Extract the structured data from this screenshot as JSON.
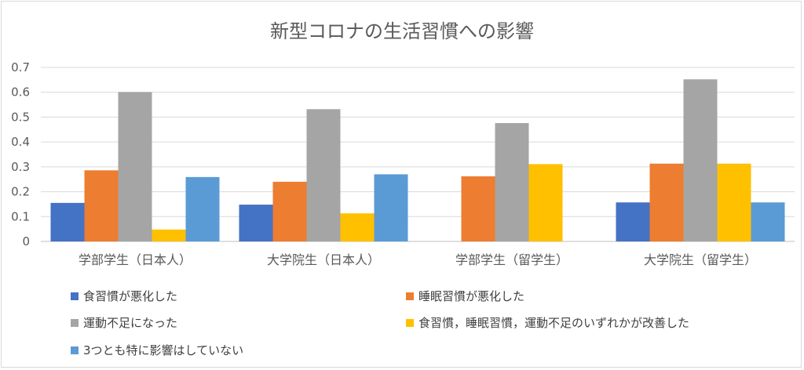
{
  "chart_data": {
    "type": "bar",
    "title": "新型コロナの生活習慣への影響",
    "xlabel": "",
    "ylabel": "",
    "ylim": [
      0,
      0.7
    ],
    "yticks": [
      "0",
      "0.1",
      "0.2",
      "0.3",
      "0.4",
      "0.5",
      "0.6",
      "0.7"
    ],
    "grid": true,
    "legend_position": "bottom",
    "categories": [
      "学部学生（日本人）",
      "大学院生（日本人）",
      "学部学生（留学生）",
      "大学院生（留学生）"
    ],
    "series": [
      {
        "name": "食習慣が悪化した",
        "color": "#4472c4",
        "values": [
          0.155,
          0.148,
          0,
          0.157
        ]
      },
      {
        "name": "睡眠習慣が悪化した",
        "color": "#ed7d31",
        "values": [
          0.286,
          0.24,
          0.262,
          0.313
        ]
      },
      {
        "name": "運動不足になった",
        "color": "#a5a5a5",
        "values": [
          0.601,
          0.532,
          0.476,
          0.652
        ]
      },
      {
        "name": "食習慣，睡眠習慣，運動不足のいずれかが改善した",
        "color": "#ffc000",
        "values": [
          0.048,
          0.113,
          0.311,
          0.313
        ]
      },
      {
        "name": "3つとも特に影響はしていない",
        "color": "#5b9bd5",
        "values": [
          0.259,
          0.27,
          0,
          0.157
        ]
      }
    ]
  }
}
